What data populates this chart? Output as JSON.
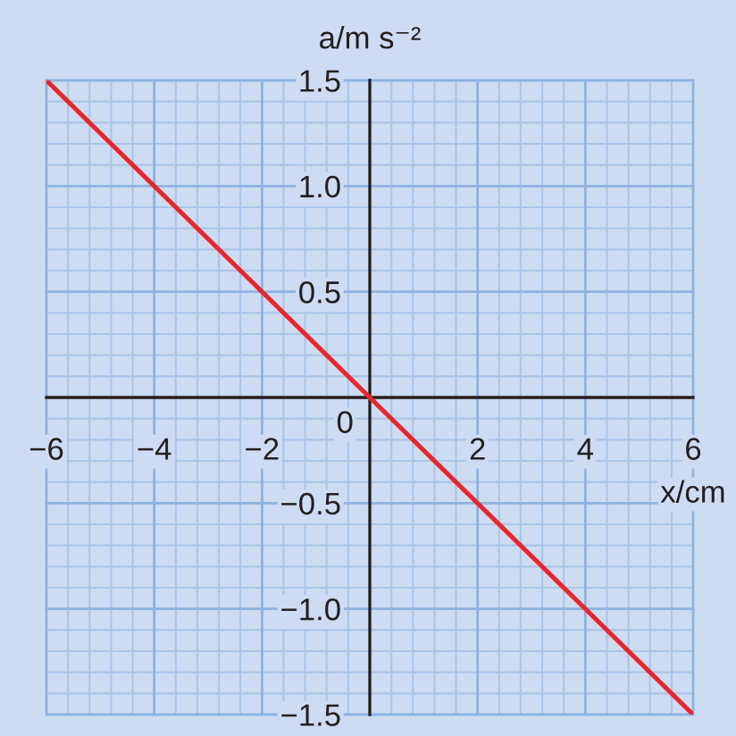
{
  "chart_data": {
    "type": "line",
    "xlabel": "x/cm",
    "ylabel": "a/m s⁻²",
    "x": [
      -6,
      0,
      6
    ],
    "series": [
      {
        "color": "#e8262b",
        "values": [
          1.5,
          0,
          -1.5
        ]
      }
    ],
    "xlim": [
      -6,
      6
    ],
    "ylim": [
      -1.5,
      1.5
    ],
    "xticks": [
      {
        "value": -6,
        "label": "−6"
      },
      {
        "value": -5.6,
        "label": null
      },
      {
        "value": -5.2,
        "label": null
      },
      {
        "value": -4.8,
        "label": null
      },
      {
        "value": -4.4,
        "label": null
      },
      {
        "value": -4,
        "label": "−4"
      },
      {
        "value": -3.6,
        "label": null
      },
      {
        "value": -3.2,
        "label": null
      },
      {
        "value": -2.8,
        "label": null
      },
      {
        "value": -2.4,
        "label": null
      },
      {
        "value": -2,
        "label": "−2"
      },
      {
        "value": -1.6,
        "label": null
      },
      {
        "value": -1.2,
        "label": null
      },
      {
        "value": -0.8,
        "label": null
      },
      {
        "value": -0.4,
        "label": null
      },
      {
        "value": 0.4,
        "label": null
      },
      {
        "value": 0.8,
        "label": null
      },
      {
        "value": 1.2,
        "label": null
      },
      {
        "value": 1.6,
        "label": null
      },
      2,
      {
        "value": 2.4,
        "label": null
      },
      {
        "value": 2.8,
        "label": null
      },
      {
        "value": 3.2,
        "label": null
      },
      {
        "value": 3.6,
        "label": null
      },
      4,
      {
        "value": 4.4,
        "label": null
      },
      {
        "value": 4.8,
        "label": null
      },
      {
        "value": 5.2,
        "label": null
      },
      {
        "value": 5.6,
        "label": null
      },
      6
    ],
    "yticks": [
      {
        "value": -1.5,
        "label": "−1.5"
      },
      {
        "value": -1.4,
        "label": null
      },
      {
        "value": -1.3,
        "label": null
      },
      {
        "value": -1.2,
        "label": null
      },
      {
        "value": -1.1,
        "label": null
      },
      {
        "value": -1,
        "label": "−1.0"
      },
      {
        "value": -0.9,
        "label": null
      },
      {
        "value": -0.8,
        "label": null
      },
      {
        "value": -0.7,
        "label": null
      },
      {
        "value": -0.6,
        "label": null
      },
      {
        "value": -0.5,
        "label": "−0.5"
      },
      {
        "value": -0.4,
        "label": null
      },
      {
        "value": -0.3,
        "label": null
      },
      {
        "value": -0.2,
        "label": null
      },
      {
        "value": -0.1,
        "label": null
      },
      {
        "value": 0.1,
        "label": null
      },
      {
        "value": 0.2,
        "label": null
      },
      {
        "value": 0.3,
        "label": null
      },
      {
        "value": 0.4,
        "label": null
      },
      0.5,
      {
        "value": 0.6,
        "label": null
      },
      {
        "value": 0.7,
        "label": null
      },
      {
        "value": 0.8,
        "label": null
      },
      {
        "value": 0.9,
        "label": null
      },
      {
        "value": 1,
        "label": "1.0"
      },
      {
        "value": 1.1,
        "label": null
      },
      {
        "value": 1.2,
        "label": null
      },
      {
        "value": 1.3,
        "label": null
      },
      {
        "value": 1.4,
        "label": null
      },
      1.5
    ],
    "annotations": [
      {
        "text": "0",
        "x": 0,
        "y": 0
      }
    ],
    "grid": true,
    "marker": "none",
    "line_style": "solid"
  }
}
